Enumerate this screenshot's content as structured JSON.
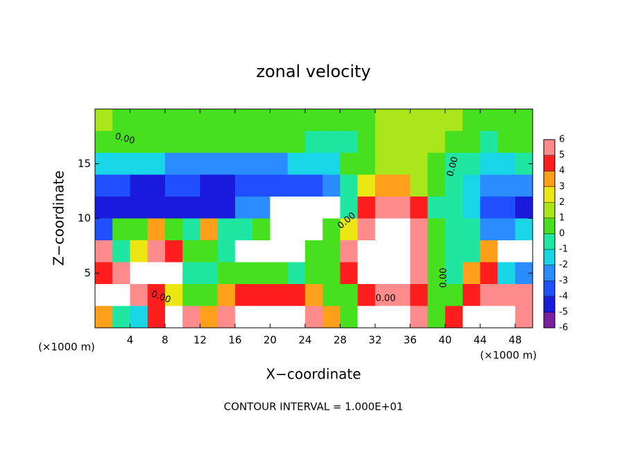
{
  "chart_data": {
    "type": "heatmap",
    "title": "zonal velocity",
    "xlabel": "X−coordinate",
    "ylabel": "Z−coordinate",
    "xunit": "(×1000 m)",
    "yunit": "(×1000 m)",
    "footer": "CONTOUR INTERVAL = 1.000E+01",
    "contour_labels": [
      "0.00",
      "0.00",
      "0.00",
      "0.00",
      "0.00",
      "0.00"
    ],
    "xlim": [
      0,
      50
    ],
    "ylim": [
      0,
      20
    ],
    "xticks": [
      4,
      8,
      12,
      16,
      20,
      24,
      28,
      32,
      36,
      40,
      44,
      48
    ],
    "yticks": [
      5,
      10,
      15
    ],
    "cell": 2,
    "x": [
      1,
      3,
      5,
      7,
      9,
      11,
      13,
      15,
      17,
      19,
      21,
      23,
      25,
      27,
      29,
      31,
      33,
      35,
      37,
      39,
      41,
      43,
      45,
      47,
      49
    ],
    "y": [
      19,
      17,
      15,
      13,
      11,
      9,
      7,
      5,
      3,
      1
    ],
    "z": [
      [
        1,
        0.5,
        0.5,
        0.5,
        0.5,
        0.5,
        0.5,
        0.5,
        0.5,
        0.5,
        0.5,
        0.5,
        0.5,
        0.5,
        0.5,
        0.5,
        1,
        1.5,
        1.5,
        1.5,
        1,
        0.5,
        0.5,
        0.5,
        0.5
      ],
      [
        0.5,
        0.5,
        0.5,
        0.5,
        0.5,
        0.5,
        0.5,
        0.5,
        0.5,
        0.5,
        0,
        0,
        -0.5,
        -0.5,
        -1,
        0,
        1,
        1.5,
        1.5,
        1.5,
        0,
        0,
        -0.5,
        0,
        0
      ],
      [
        -2,
        -2,
        -2,
        -2,
        -2.5,
        -3,
        -3,
        -3,
        -3,
        -3,
        -2.5,
        -2,
        -2,
        -2,
        0,
        0.5,
        1.5,
        1.5,
        1.5,
        0.5,
        -1,
        -1,
        -1.5,
        -1.5,
        -1
      ],
      [
        -4,
        -4,
        -4.5,
        -4.5,
        -4,
        -4,
        -4.5,
        -4.5,
        -4,
        -4,
        -3.5,
        -4,
        -3.5,
        -2.5,
        -1,
        2,
        3,
        3,
        1,
        0,
        -1,
        -2,
        -3,
        -3,
        -3
      ],
      [
        -5,
        -5,
        -5,
        -5,
        -5,
        -4.5,
        -4.5,
        -4.5,
        -3,
        -3,
        8,
        8,
        8,
        8,
        -1,
        4,
        5,
        5,
        4,
        -0.5,
        -1,
        -2,
        -4,
        -4,
        -4.5
      ],
      [
        -4,
        0,
        0,
        3,
        0.5,
        -0.5,
        3,
        -1,
        -1,
        0,
        8,
        8,
        8,
        0,
        2,
        6,
        8,
        8,
        5,
        0,
        -0.5,
        -1,
        -3,
        -3,
        -2
      ],
      [
        6,
        -1,
        2,
        6,
        4,
        0,
        0,
        -0.5,
        8,
        8,
        8,
        8,
        0,
        0,
        5,
        8,
        8,
        8,
        6,
        0,
        -1,
        -1,
        3,
        8,
        8
      ],
      [
        4,
        5,
        8,
        8,
        8,
        -0.5,
        -1,
        0,
        0,
        0,
        0,
        -0.5,
        0,
        0,
        4,
        8,
        8,
        8,
        5,
        0.5,
        -0.5,
        3,
        4,
        -2,
        -3
      ],
      [
        8,
        8,
        5,
        4,
        2,
        0,
        0.5,
        3,
        4,
        4,
        4,
        4,
        3,
        0.5,
        0.5,
        4,
        5,
        5,
        4,
        0,
        0,
        4,
        5,
        5,
        5
      ],
      [
        3,
        -1,
        -2,
        4,
        8,
        6,
        3,
        5,
        8,
        8,
        8,
        8,
        6,
        3,
        0,
        8,
        8,
        8,
        6,
        0,
        4,
        8,
        8,
        8,
        6
      ]
    ],
    "colorbar_ticks": [
      -6,
      -5,
      -4,
      -3,
      -2,
      -1,
      0,
      1,
      2,
      3,
      4,
      5,
      6
    ],
    "colors": [
      "#7a1fa0",
      "#1a1adc",
      "#1f4fff",
      "#2a8cff",
      "#19d6e6",
      "#1fe6a0",
      "#46e01e",
      "#a8e61a",
      "#ece614",
      "#ffa01a",
      "#ff1e1e",
      "#ff8c8c"
    ],
    "over_color": "#ffffff"
  }
}
